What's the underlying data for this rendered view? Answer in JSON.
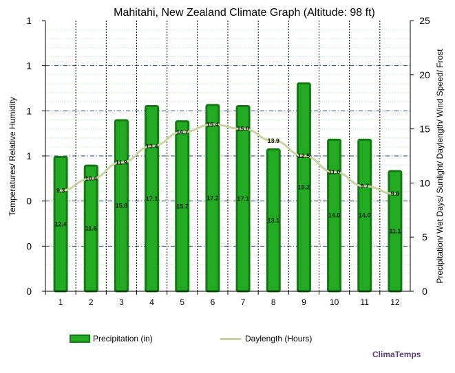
{
  "chart_data": {
    "type": "bar",
    "title": "Mahitahi, New Zealand Climate Graph (Altitude: 98 ft)",
    "ylabel_left": "Temperatures/ Relative Humidity",
    "ylabel_right": "Precipitation/ Wet Days/ Sunlight/ Daylength/ Wind Speed/ Frost",
    "left_ticks": [
      "0",
      "0",
      "0",
      "1",
      "1",
      "1",
      "1"
    ],
    "right_ticks": [
      "0",
      "5",
      "10",
      "15",
      "20",
      "25"
    ],
    "ylim_right": [
      0,
      25
    ],
    "categories": [
      "1",
      "2",
      "3",
      "4",
      "5",
      "6",
      "7",
      "8",
      "9",
      "10",
      "11",
      "12"
    ],
    "series": [
      {
        "name": "Precipitation (in)",
        "type": "bar",
        "color": "#22aa22",
        "border": "#137a13",
        "values": [
          12.4,
          11.6,
          15.8,
          17.1,
          15.7,
          17.2,
          17.1,
          13.1,
          19.2,
          14.0,
          14.0,
          11.1
        ],
        "labels": [
          "12.4",
          "11.6",
          "15.8",
          "17.1",
          "15.7",
          "17.2",
          "17.1",
          "13.1",
          "19.2",
          "14.0",
          "14.0",
          "11.1"
        ]
      },
      {
        "name": "Daylength (Hours)",
        "type": "line",
        "color": "#c8d4a0",
        "values": [
          9.3,
          10.4,
          11.9,
          13.4,
          14.7,
          15.4,
          15.0,
          13.9,
          12.5,
          11.0,
          9.7,
          9.0
        ],
        "labels": [
          "9.3",
          "10.4",
          "11.9",
          "13.4",
          "14.7",
          "15.4",
          "15.0",
          "13.9",
          "12.5",
          "11.0",
          "9.7",
          "9.0"
        ]
      }
    ],
    "grid": true
  },
  "legend": {
    "precip": "Precipitation (in)",
    "daylength": "Daylength (Hours)"
  },
  "brand": "ClimaTemps"
}
